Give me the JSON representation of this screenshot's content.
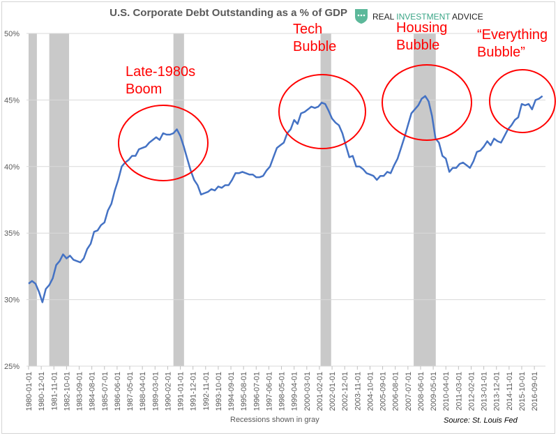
{
  "chart_data": {
    "type": "line",
    "title": "U.S. Corporate Debt Outstanding as a % of GDP",
    "xlabel": "Recessions shown in gray",
    "ylabel": "",
    "source": "Source: St. Louis Fed",
    "ylim": [
      25,
      50
    ],
    "grid": true,
    "y_ticks": [
      "25%",
      "30%",
      "35%",
      "40%",
      "45%",
      "50%"
    ],
    "x_ticks": [
      "1980-01-01",
      "1980-12-01",
      "1981-11-01",
      "1982-10-01",
      "1983-09-01",
      "1984-08-01",
      "1985-07-01",
      "1986-06-01",
      "1987-05-01",
      "1988-04-01",
      "1989-03-01",
      "1990-02-01",
      "1991-01-01",
      "1991-12-01",
      "1992-11-01",
      "1993-10-01",
      "1994-09-01",
      "1995-08-01",
      "1996-07-01",
      "1997-06-01",
      "1998-05-01",
      "1999-04-01",
      "2000-03-01",
      "2001-02-01",
      "2002-01-01",
      "2002-12-01",
      "2003-11-01",
      "2004-10-01",
      "2005-09-01",
      "2006-08-01",
      "2007-07-01",
      "2008-06-01",
      "2009-05-01",
      "2010-04-01",
      "2011-03-01",
      "2012-02-01",
      "2013-01-01",
      "2013-12-01",
      "2014-11-01",
      "2015-10-01",
      "2016-09-01"
    ],
    "line_color": "#4472c4",
    "recession_color": "#c9c9c9",
    "recessions": [
      [
        "1980-01",
        "1980-07"
      ],
      [
        "1981-07",
        "1982-11"
      ],
      [
        "1990-07",
        "1991-03"
      ],
      [
        "2001-03",
        "2001-11"
      ],
      [
        "2007-12",
        "2009-06"
      ]
    ],
    "series": [
      {
        "x": [
          "1980-01",
          "1980-04",
          "1980-07",
          "1980-10",
          "1981-01",
          "1981-04",
          "1981-07",
          "1981-10",
          "1982-01",
          "1982-04",
          "1982-07",
          "1982-10",
          "1983-01",
          "1983-04",
          "1983-07",
          "1983-10",
          "1984-01",
          "1984-04",
          "1984-07",
          "1984-10",
          "1985-01",
          "1985-04",
          "1985-07",
          "1985-10",
          "1986-01",
          "1986-04",
          "1986-07",
          "1986-10",
          "1987-01",
          "1987-04",
          "1987-07",
          "1987-10",
          "1988-01",
          "1988-04",
          "1988-07",
          "1988-10",
          "1989-01",
          "1989-04",
          "1989-07",
          "1989-10",
          "1990-01",
          "1990-04",
          "1990-07",
          "1990-10",
          "1991-01",
          "1991-04",
          "1991-07",
          "1991-10",
          "1992-01",
          "1992-04",
          "1992-07",
          "1992-10",
          "1993-01",
          "1993-04",
          "1993-07",
          "1993-10",
          "1994-01",
          "1994-04",
          "1994-07",
          "1994-10",
          "1995-01",
          "1995-04",
          "1995-07",
          "1995-10",
          "1996-01",
          "1996-04",
          "1996-07",
          "1996-10",
          "1997-01",
          "1997-04",
          "1997-07",
          "1997-10",
          "1998-01",
          "1998-04",
          "1998-07",
          "1998-10",
          "1999-01",
          "1999-04",
          "1999-07",
          "1999-10",
          "2000-01",
          "2000-04",
          "2000-07",
          "2000-10",
          "2001-01",
          "2001-04",
          "2001-07",
          "2001-10",
          "2002-01",
          "2002-04",
          "2002-07",
          "2002-10",
          "2003-01",
          "2003-04",
          "2003-07",
          "2003-10",
          "2004-01",
          "2004-04",
          "2004-07",
          "2004-10",
          "2005-01",
          "2005-04",
          "2005-07",
          "2005-10",
          "2006-01",
          "2006-04",
          "2006-07",
          "2006-10",
          "2007-01",
          "2007-04",
          "2007-07",
          "2007-10",
          "2008-01",
          "2008-04",
          "2008-07",
          "2008-10",
          "2009-01",
          "2009-04",
          "2009-07",
          "2009-10",
          "2010-01",
          "2010-04",
          "2010-07",
          "2010-10",
          "2011-01",
          "2011-04",
          "2011-07",
          "2011-10",
          "2012-01",
          "2012-04",
          "2012-07",
          "2012-10",
          "2013-01",
          "2013-04",
          "2013-07",
          "2013-10",
          "2014-01",
          "2014-04",
          "2014-07",
          "2014-10",
          "2015-01",
          "2015-04",
          "2015-07",
          "2015-10",
          "2016-01",
          "2016-04",
          "2016-07",
          "2016-10",
          "2017-01",
          "2017-04"
        ],
        "values": [
          31.2,
          31.4,
          31.2,
          30.6,
          29.8,
          30.8,
          31.1,
          31.6,
          32.6,
          32.9,
          33.4,
          33.1,
          33.3,
          33.0,
          32.9,
          32.8,
          33.1,
          33.8,
          34.2,
          35.1,
          35.2,
          35.6,
          35.8,
          36.7,
          37.2,
          38.2,
          39.0,
          40.0,
          40.3,
          40.5,
          40.8,
          40.8,
          41.3,
          41.4,
          41.5,
          41.8,
          42.0,
          42.2,
          42.0,
          42.5,
          42.4,
          42.4,
          42.5,
          42.8,
          42.3,
          41.5,
          40.6,
          39.7,
          39.0,
          38.6,
          37.9,
          38.0,
          38.1,
          38.3,
          38.2,
          38.5,
          38.4,
          38.6,
          38.6,
          39.0,
          39.5,
          39.5,
          39.6,
          39.5,
          39.4,
          39.4,
          39.2,
          39.2,
          39.3,
          39.7,
          40.0,
          40.7,
          41.4,
          41.6,
          41.8,
          42.5,
          42.8,
          43.5,
          43.2,
          44.0,
          44.1,
          44.3,
          44.5,
          44.4,
          44.5,
          44.8,
          44.7,
          44.2,
          43.6,
          43.3,
          43.1,
          42.5,
          41.6,
          40.7,
          40.8,
          40.0,
          40.0,
          39.8,
          39.5,
          39.4,
          39.3,
          39.0,
          39.3,
          39.3,
          39.6,
          39.5,
          40.1,
          40.6,
          41.4,
          42.2,
          43.1,
          44.0,
          44.3,
          44.6,
          45.1,
          45.3,
          44.9,
          43.8,
          42.1,
          41.8,
          40.8,
          40.6,
          39.6,
          39.9,
          39.9,
          40.2,
          40.3,
          40.1,
          39.9,
          40.4,
          41.1,
          41.2,
          41.5,
          41.9,
          41.6,
          42.1,
          41.9,
          41.8,
          42.3,
          42.8,
          43.1,
          43.5,
          43.7,
          44.7,
          44.6,
          44.7,
          44.3,
          45.0,
          45.1,
          45.3
        ]
      }
    ],
    "annotations": [
      {
        "lines": [
          "Late-1980s",
          "Boom"
        ]
      },
      {
        "lines": [
          "Tech",
          "Bubble"
        ]
      },
      {
        "lines": [
          "Housing",
          "Bubble"
        ]
      },
      {
        "lines": [
          "“Everything",
          "Bubble”"
        ]
      }
    ],
    "annotation_color": "#ff0000"
  },
  "logo": {
    "real": "REAL",
    "investment": "INVESTMENT",
    "advice": "ADVICE",
    "color": "#3aa586",
    "icon": "shield-icon"
  }
}
